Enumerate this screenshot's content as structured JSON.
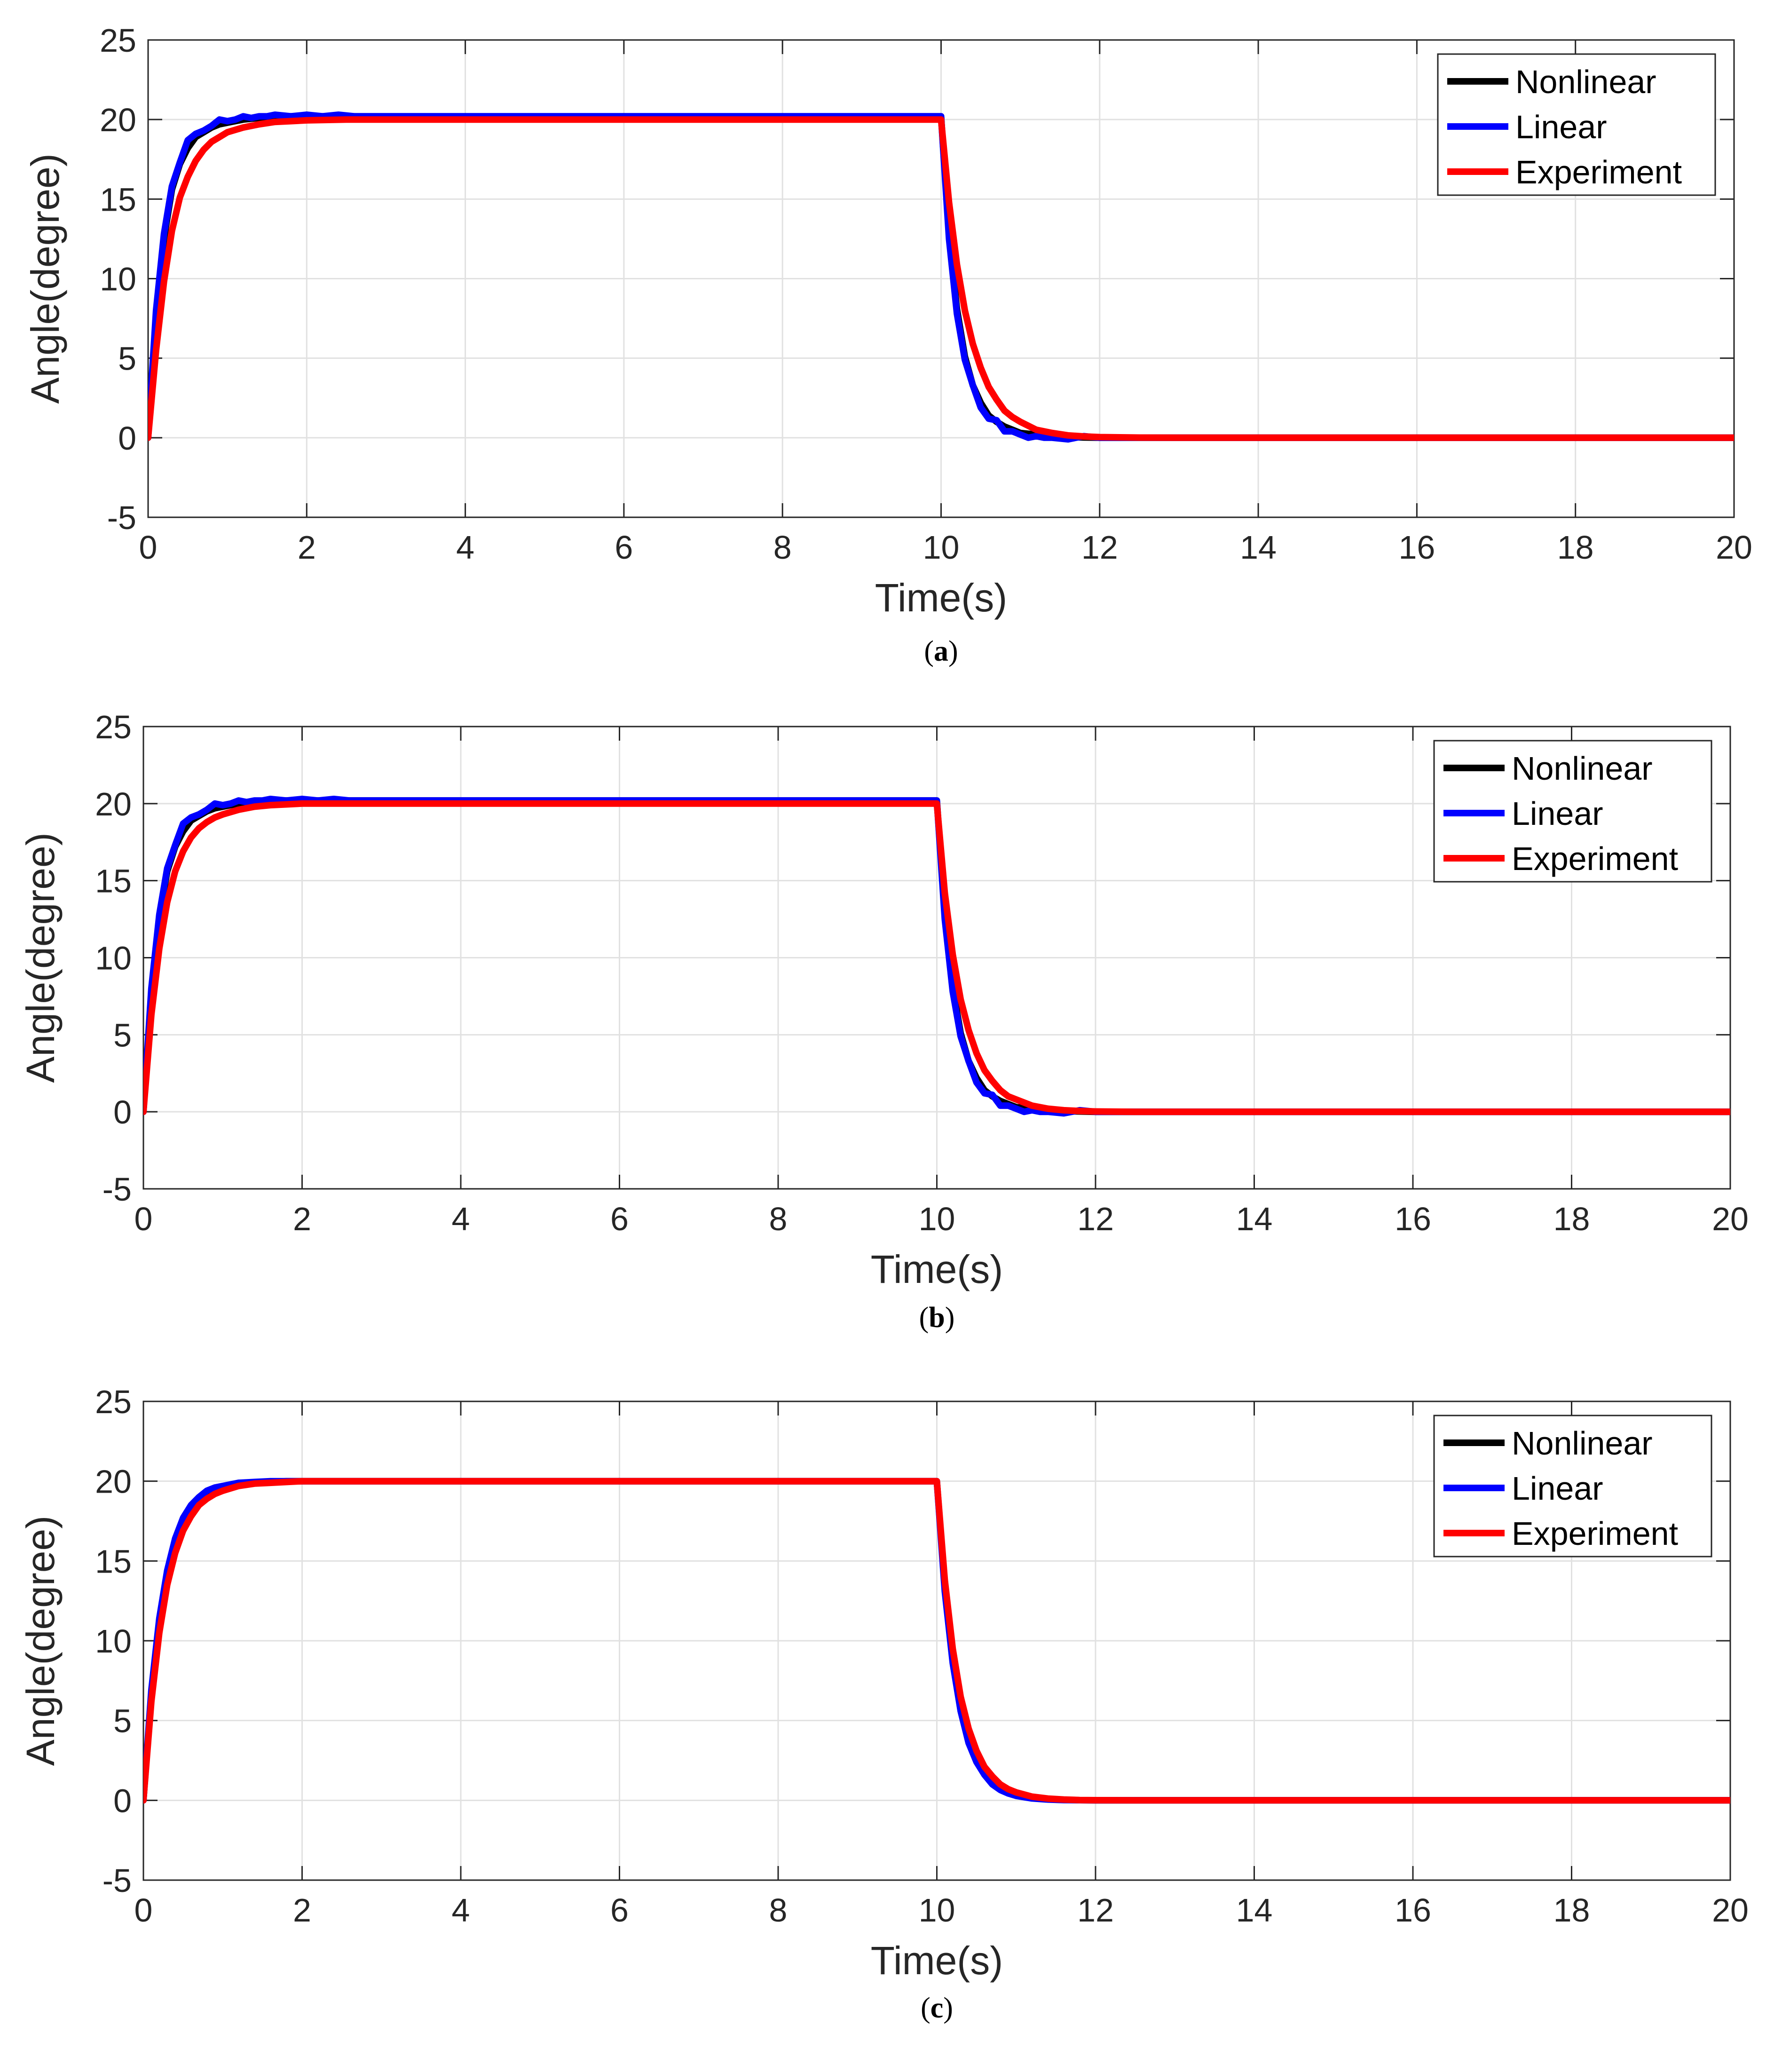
{
  "chart_data": [
    {
      "type": "line",
      "caption": "a",
      "xlabel": "Time(s)",
      "ylabel": "Angle(degree)",
      "xlim": [
        0,
        20
      ],
      "ylim": [
        -5,
        25
      ],
      "xticks": [
        0,
        2,
        4,
        6,
        8,
        10,
        12,
        14,
        16,
        18,
        20
      ],
      "yticks": [
        -5,
        0,
        5,
        10,
        15,
        20,
        25
      ],
      "grid": true,
      "legend_position": "top-right",
      "series": [
        {
          "name": "Nonlinear",
          "color": "#000000",
          "x": [
            0,
            0.1,
            0.2,
            0.3,
            0.4,
            0.5,
            0.6,
            0.7,
            0.8,
            0.9,
            1.0,
            1.2,
            1.4,
            1.6,
            1.8,
            2.0,
            2.5,
            3.0,
            4.0,
            6.0,
            8.0,
            10.0,
            10.1,
            10.2,
            10.3,
            10.4,
            10.5,
            10.6,
            10.7,
            10.8,
            10.9,
            11.0,
            11.2,
            11.4,
            11.6,
            11.8,
            12.0,
            12.5,
            13.0,
            14.0,
            16.0,
            18.0,
            20.0
          ],
          "y": [
            0,
            7.6,
            12.5,
            15.6,
            17.2,
            18.2,
            18.9,
            19.2,
            19.5,
            19.7,
            19.8,
            20.0,
            20.1,
            20.2,
            20.2,
            20.2,
            20.2,
            20.2,
            20.2,
            20.2,
            20.2,
            20.2,
            12.9,
            8.1,
            5.1,
            3.3,
            2.2,
            1.4,
            1.0,
            0.7,
            0.5,
            0.3,
            0.2,
            0.1,
            0.05,
            0.02,
            0,
            0,
            0,
            0,
            0,
            0,
            0
          ]
        },
        {
          "name": "Linear",
          "color": "#0000ff",
          "x": [
            0,
            0.1,
            0.2,
            0.3,
            0.4,
            0.5,
            0.6,
            0.7,
            0.8,
            0.9,
            1.0,
            1.1,
            1.2,
            1.3,
            1.4,
            1.5,
            1.6,
            1.8,
            2.0,
            2.2,
            2.4,
            2.6,
            3.0,
            4.0,
            6.0,
            8.0,
            10.0,
            10.1,
            10.2,
            10.3,
            10.4,
            10.5,
            10.6,
            10.7,
            10.8,
            10.9,
            11.0,
            11.1,
            11.2,
            11.3,
            11.4,
            11.6,
            11.8,
            12.0,
            12.5,
            13.0,
            14.0,
            16.0,
            18.0,
            20.0
          ],
          "y": [
            0,
            8.0,
            12.8,
            15.8,
            17.3,
            18.7,
            19.1,
            19.3,
            19.6,
            20.0,
            19.9,
            20.0,
            20.2,
            20.1,
            20.2,
            20.2,
            20.3,
            20.2,
            20.3,
            20.2,
            20.3,
            20.2,
            20.2,
            20.2,
            20.2,
            20.2,
            20.2,
            12.5,
            7.8,
            4.9,
            3.3,
            1.9,
            1.2,
            1.1,
            0.4,
            0.4,
            0.2,
            0.0,
            0.1,
            0.0,
            0.0,
            -0.1,
            0.1,
            0.0,
            0.0,
            0.0,
            0.0,
            0,
            0,
            0
          ]
        },
        {
          "name": "Experiment",
          "color": "#ff0000",
          "x": [
            0,
            0.1,
            0.2,
            0.3,
            0.4,
            0.5,
            0.6,
            0.7,
            0.8,
            0.9,
            1.0,
            1.2,
            1.4,
            1.6,
            1.8,
            2.0,
            2.5,
            3.0,
            4.0,
            6.0,
            8.0,
            10.0,
            10.1,
            10.2,
            10.3,
            10.4,
            10.5,
            10.6,
            10.7,
            10.8,
            10.9,
            11.0,
            11.2,
            11.4,
            11.6,
            11.8,
            12.0,
            12.5,
            13.0,
            14.0,
            16.0,
            18.0,
            20.0
          ],
          "y": [
            0,
            5.5,
            9.8,
            13.0,
            15.1,
            16.4,
            17.4,
            18.1,
            18.6,
            18.9,
            19.2,
            19.5,
            19.7,
            19.85,
            19.9,
            19.95,
            20.0,
            20.0,
            20.0,
            20.0,
            20.0,
            20.0,
            14.8,
            10.9,
            8.0,
            5.9,
            4.4,
            3.2,
            2.4,
            1.7,
            1.3,
            1.0,
            0.5,
            0.3,
            0.15,
            0.08,
            0.04,
            0.01,
            0,
            0,
            0,
            0,
            0
          ]
        }
      ]
    },
    {
      "type": "line",
      "caption": "b",
      "xlabel": "Time(s)",
      "ylabel": "Angle(degree)",
      "xlim": [
        0,
        20
      ],
      "ylim": [
        -5,
        25
      ],
      "xticks": [
        0,
        2,
        4,
        6,
        8,
        10,
        12,
        14,
        16,
        18,
        20
      ],
      "yticks": [
        -5,
        0,
        5,
        10,
        15,
        20,
        25
      ],
      "grid": true,
      "legend_position": "top-right",
      "series": [
        {
          "name": "Nonlinear",
          "color": "#000000",
          "x": [
            0,
            0.1,
            0.2,
            0.3,
            0.4,
            0.5,
            0.6,
            0.7,
            0.8,
            0.9,
            1.0,
            1.2,
            1.4,
            1.6,
            1.8,
            2.0,
            2.5,
            3.0,
            4.0,
            6.0,
            8.0,
            10.0,
            10.1,
            10.2,
            10.3,
            10.4,
            10.5,
            10.6,
            10.7,
            10.8,
            10.9,
            11.0,
            11.2,
            11.4,
            11.6,
            11.8,
            12.0,
            12.5,
            13.0,
            14.0,
            16.0,
            18.0,
            20.0
          ],
          "y": [
            0,
            7.6,
            12.5,
            15.6,
            17.2,
            18.2,
            18.9,
            19.2,
            19.5,
            19.7,
            19.8,
            20.0,
            20.1,
            20.2,
            20.2,
            20.2,
            20.2,
            20.2,
            20.2,
            20.2,
            20.2,
            20.2,
            12.9,
            8.1,
            5.1,
            3.3,
            2.2,
            1.4,
            1.0,
            0.7,
            0.5,
            0.3,
            0.2,
            0.1,
            0.05,
            0.02,
            0,
            0,
            0,
            0,
            0,
            0,
            0
          ]
        },
        {
          "name": "Linear",
          "color": "#0000ff",
          "x": [
            0,
            0.1,
            0.2,
            0.3,
            0.4,
            0.5,
            0.6,
            0.7,
            0.8,
            0.9,
            1.0,
            1.1,
            1.2,
            1.3,
            1.4,
            1.5,
            1.6,
            1.8,
            2.0,
            2.2,
            2.4,
            2.6,
            3.0,
            4.0,
            6.0,
            8.0,
            10.0,
            10.1,
            10.2,
            10.3,
            10.4,
            10.5,
            10.6,
            10.7,
            10.8,
            10.9,
            11.0,
            11.1,
            11.2,
            11.3,
            11.4,
            11.6,
            11.8,
            12.0,
            12.5,
            13.0,
            14.0,
            16.0,
            18.0,
            20.0
          ],
          "y": [
            0,
            8.0,
            12.8,
            15.8,
            17.3,
            18.7,
            19.1,
            19.3,
            19.6,
            20.0,
            19.9,
            20.0,
            20.2,
            20.1,
            20.2,
            20.2,
            20.3,
            20.2,
            20.3,
            20.2,
            20.3,
            20.2,
            20.2,
            20.2,
            20.2,
            20.2,
            20.2,
            12.5,
            7.8,
            4.9,
            3.3,
            1.9,
            1.2,
            1.1,
            0.4,
            0.4,
            0.2,
            0.0,
            0.1,
            0.0,
            0.0,
            -0.1,
            0.1,
            0.0,
            0.0,
            0.0,
            0.0,
            0,
            0,
            0
          ]
        },
        {
          "name": "Experiment",
          "color": "#ff0000",
          "x": [
            0,
            0.1,
            0.2,
            0.3,
            0.4,
            0.5,
            0.6,
            0.7,
            0.8,
            0.9,
            1.0,
            1.2,
            1.4,
            1.6,
            1.8,
            2.0,
            2.5,
            3.0,
            4.0,
            6.0,
            8.0,
            10.0,
            10.1,
            10.2,
            10.3,
            10.4,
            10.5,
            10.6,
            10.7,
            10.8,
            10.9,
            11.0,
            11.2,
            11.4,
            11.6,
            11.8,
            12.0,
            12.5,
            13.0,
            14.0,
            16.0,
            18.0,
            20.0
          ],
          "y": [
            0,
            6.3,
            10.6,
            13.6,
            15.6,
            16.9,
            17.8,
            18.4,
            18.8,
            19.1,
            19.3,
            19.6,
            19.8,
            19.9,
            19.95,
            20.0,
            20.0,
            20.0,
            20.0,
            20.0,
            20.0,
            20.0,
            14.2,
            10.2,
            7.3,
            5.3,
            3.8,
            2.7,
            2.0,
            1.4,
            1.0,
            0.8,
            0.4,
            0.2,
            0.1,
            0.05,
            0.02,
            0,
            0,
            0,
            0,
            0,
            0
          ]
        }
      ]
    },
    {
      "type": "line",
      "caption": "c",
      "xlabel": "Time(s)",
      "ylabel": "Angle(degree)",
      "xlim": [
        0,
        20
      ],
      "ylim": [
        -5,
        25
      ],
      "xticks": [
        0,
        2,
        4,
        6,
        8,
        10,
        12,
        14,
        16,
        18,
        20
      ],
      "yticks": [
        -5,
        0,
        5,
        10,
        15,
        20,
        25
      ],
      "grid": true,
      "legend_position": "top-right",
      "series": [
        {
          "name": "Nonlinear",
          "color": "#000000",
          "x": [
            0,
            0.1,
            0.2,
            0.3,
            0.4,
            0.5,
            0.6,
            0.7,
            0.8,
            0.9,
            1.0,
            1.2,
            1.4,
            1.6,
            1.8,
            2.0,
            2.5,
            3.0,
            4.0,
            6.0,
            8.0,
            10.0,
            10.1,
            10.2,
            10.3,
            10.4,
            10.5,
            10.6,
            10.7,
            10.8,
            10.9,
            11.0,
            11.2,
            11.4,
            11.6,
            11.8,
            12.0,
            12.5,
            13.0,
            14.0,
            16.0,
            18.0,
            20.0
          ],
          "y": [
            0,
            6.6,
            11.0,
            14.0,
            16.0,
            17.3,
            18.2,
            18.8,
            19.2,
            19.4,
            19.6,
            19.8,
            19.9,
            19.95,
            20.0,
            20.0,
            20.0,
            20.0,
            20.0,
            20.0,
            20.0,
            20.0,
            13.4,
            9.0,
            6.0,
            4.0,
            2.7,
            1.8,
            1.2,
            0.8,
            0.55,
            0.37,
            0.16,
            0.07,
            0.03,
            0.01,
            0,
            0,
            0,
            0,
            0,
            0,
            0
          ]
        },
        {
          "name": "Linear",
          "color": "#0000ff",
          "x": [
            0,
            0.1,
            0.2,
            0.3,
            0.4,
            0.5,
            0.6,
            0.7,
            0.8,
            0.9,
            1.0,
            1.2,
            1.4,
            1.6,
            1.8,
            2.0,
            2.5,
            3.0,
            4.0,
            6.0,
            8.0,
            10.0,
            10.1,
            10.2,
            10.3,
            10.4,
            10.5,
            10.6,
            10.7,
            10.8,
            10.9,
            11.0,
            11.2,
            11.4,
            11.6,
            11.8,
            12.0,
            12.5,
            13.0,
            14.0,
            16.0,
            18.0,
            20.0
          ],
          "y": [
            0,
            6.9,
            11.4,
            14.4,
            16.4,
            17.7,
            18.5,
            19.0,
            19.4,
            19.6,
            19.7,
            19.9,
            19.95,
            20.0,
            20.0,
            20.0,
            20.0,
            20.0,
            20.0,
            20.0,
            20.0,
            20.0,
            13.1,
            8.6,
            5.6,
            3.6,
            2.4,
            1.6,
            1.0,
            0.65,
            0.43,
            0.28,
            0.12,
            0.05,
            0.02,
            0.01,
            0,
            0,
            0,
            0,
            0,
            0,
            0
          ]
        },
        {
          "name": "Experiment",
          "color": "#ff0000",
          "x": [
            0,
            0.1,
            0.2,
            0.3,
            0.4,
            0.5,
            0.6,
            0.7,
            0.8,
            0.9,
            1.0,
            1.2,
            1.4,
            1.6,
            1.8,
            2.0,
            2.5,
            3.0,
            4.0,
            6.0,
            8.0,
            10.0,
            10.1,
            10.2,
            10.3,
            10.4,
            10.5,
            10.6,
            10.7,
            10.8,
            10.9,
            11.0,
            11.2,
            11.4,
            11.6,
            11.8,
            12.0,
            12.5,
            13.0,
            14.0,
            16.0,
            18.0,
            20.0
          ],
          "y": [
            0,
            6.2,
            10.5,
            13.5,
            15.5,
            16.9,
            17.8,
            18.5,
            18.9,
            19.2,
            19.4,
            19.7,
            19.85,
            19.9,
            19.95,
            20.0,
            20.0,
            20.0,
            20.0,
            20.0,
            20.0,
            20.0,
            13.8,
            9.5,
            6.5,
            4.5,
            3.1,
            2.1,
            1.5,
            1.0,
            0.7,
            0.5,
            0.23,
            0.11,
            0.05,
            0.02,
            0.01,
            0,
            0,
            0,
            0,
            0,
            0
          ]
        }
      ]
    }
  ]
}
